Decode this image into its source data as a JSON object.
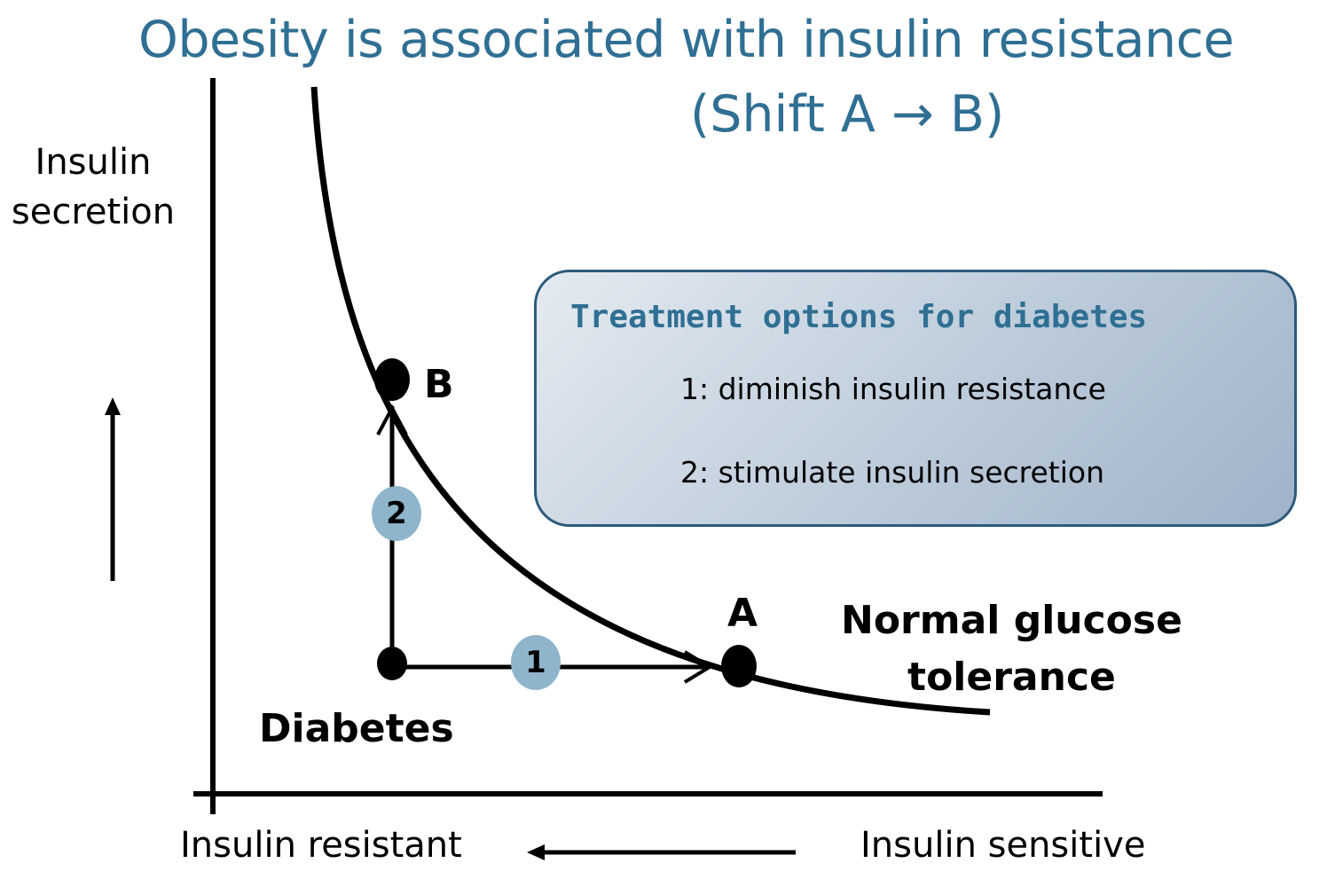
{
  "title": {
    "line1": "Obesity is associated with insulin resistance",
    "line2": "(Shift A → B)"
  },
  "axes": {
    "y_label": "Insulin\nsecretion",
    "x_label_left": "Insulin resistant",
    "x_label_right": "Insulin sensitive"
  },
  "callout": {
    "title": "Treatment options for diabetes",
    "items": [
      "1: diminish insulin resistance",
      "2: stimulate insulin secretion"
    ]
  },
  "points": {
    "a": "A",
    "b": "B"
  },
  "labels": {
    "diabetes": "Diabetes",
    "normal_glucose_tolerance": "Normal glucose\ntolerance"
  },
  "badges": {
    "one": "1",
    "two": "2"
  },
  "colors": {
    "title": "#2f6f93",
    "badge": "#8fb5cc",
    "callout_border": "#2c5a7c"
  }
}
